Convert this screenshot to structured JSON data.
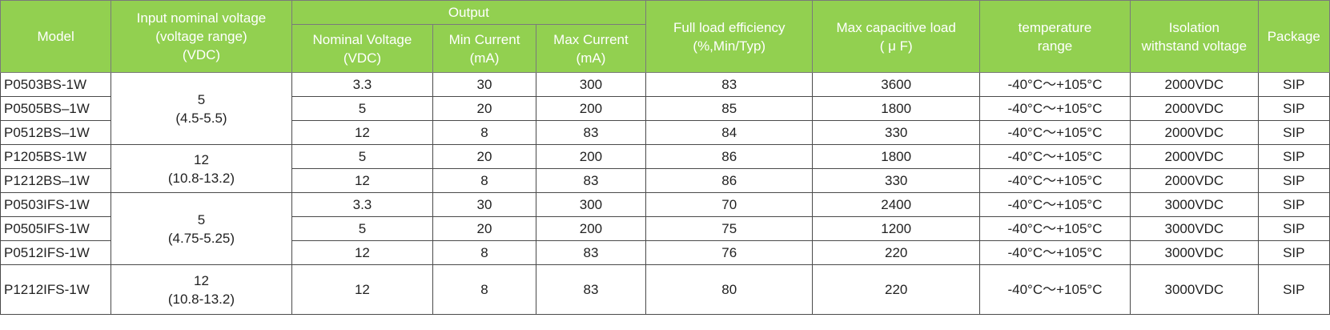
{
  "headers": {
    "model": "Model",
    "input": [
      "Input nominal voltage",
      "(voltage range)",
      "(VDC)"
    ],
    "output": "Output",
    "nominal_voltage": [
      "Nominal Voltage",
      "(VDC)"
    ],
    "min_current": [
      "Min Current",
      "(mA)"
    ],
    "max_current": [
      "Max Current",
      "(mA)"
    ],
    "efficiency": [
      "Full load efficiency",
      "(%,Min/Typ)"
    ],
    "capacitive": [
      "Max capacitive load",
      "( μ F)"
    ],
    "temperature": [
      "temperature",
      "range"
    ],
    "isolation": [
      "Isolation",
      "withstand voltage"
    ],
    "package": "Package"
  },
  "input_groups": [
    {
      "nominal": "5",
      "range": "(4.5-5.5)"
    },
    {
      "nominal": "12",
      "range": "(10.8-13.2)"
    },
    {
      "nominal": "5",
      "range": "(4.75-5.25)"
    },
    {
      "nominal": "12",
      "range": "(10.8-13.2)"
    }
  ],
  "rows": [
    {
      "model": "P0503BS-1W",
      "nominal_voltage": "3.3",
      "min_current": "30",
      "max_current": "300",
      "efficiency": "83",
      "capacitive": "3600",
      "temperature": "-40°C～+105°C",
      "isolation": "2000VDC",
      "package": "SIP"
    },
    {
      "model": "P0505BS–1W",
      "nominal_voltage": "5",
      "min_current": "20",
      "max_current": "200",
      "efficiency": "85",
      "capacitive": "1800",
      "temperature": "-40°C～+105°C",
      "isolation": "2000VDC",
      "package": "SIP"
    },
    {
      "model": "P0512BS–1W",
      "nominal_voltage": "12",
      "min_current": "8",
      "max_current": "83",
      "efficiency": "84",
      "capacitive": "330",
      "temperature": "-40°C～+105°C",
      "isolation": "2000VDC",
      "package": "SIP"
    },
    {
      "model": "P1205BS-1W",
      "nominal_voltage": "5",
      "min_current": "20",
      "max_current": "200",
      "efficiency": "86",
      "capacitive": "1800",
      "temperature": "-40°C～+105°C",
      "isolation": "2000VDC",
      "package": "SIP"
    },
    {
      "model": "P1212BS–1W",
      "nominal_voltage": "12",
      "min_current": "8",
      "max_current": "83",
      "efficiency": "86",
      "capacitive": "330",
      "temperature": "-40°C～+105°C",
      "isolation": "2000VDC",
      "package": "SIP"
    },
    {
      "model": "P0503IFS-1W",
      "nominal_voltage": "3.3",
      "min_current": "30",
      "max_current": "300",
      "efficiency": "70",
      "capacitive": "2400",
      "temperature": "-40°C～+105°C",
      "isolation": "3000VDC",
      "package": "SIP"
    },
    {
      "model": "P0505IFS-1W",
      "nominal_voltage": "5",
      "min_current": "20",
      "max_current": "200",
      "efficiency": "75",
      "capacitive": "1200",
      "temperature": "-40°C～+105°C",
      "isolation": "3000VDC",
      "package": "SIP"
    },
    {
      "model": "P0512IFS-1W",
      "nominal_voltage": "12",
      "min_current": "8",
      "max_current": "83",
      "efficiency": "76",
      "capacitive": "220",
      "temperature": "-40°C～+105°C",
      "isolation": "3000VDC",
      "package": "SIP"
    },
    {
      "model": "P1212IFS-1W",
      "nominal_voltage": "12",
      "min_current": "8",
      "max_current": "83",
      "efficiency": "80",
      "capacitive": "220",
      "temperature": "-40°C～+105°C",
      "isolation": "3000VDC",
      "package": "SIP"
    }
  ],
  "colors": {
    "header_bg": "#92d050",
    "header_text": "#ffffff",
    "border": "#4a4a4a"
  }
}
